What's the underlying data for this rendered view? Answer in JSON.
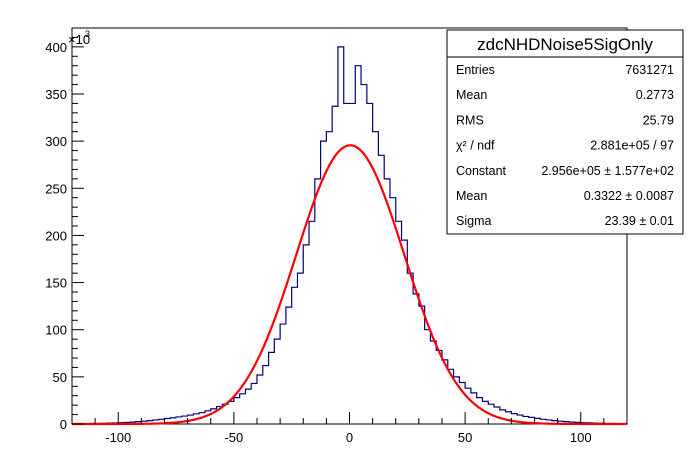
{
  "page_title": "zdcNHDNoise5SigOnly",
  "chart_data": {
    "type": "histogram",
    "title": "zdcNHDNoise5SigOnly",
    "xlabel": "",
    "ylabel": "",
    "y_multiplier_label": "×10",
    "y_multiplier_exponent": "3",
    "xlim": [
      -120,
      120
    ],
    "ylim": [
      0,
      420
    ],
    "x_ticks": [
      "-100",
      "-50",
      "0",
      "50",
      "100"
    ],
    "x_tick_values": [
      -100,
      -50,
      0,
      50,
      100
    ],
    "y_ticks": [
      "0",
      "50",
      "100",
      "150",
      "200",
      "250",
      "300",
      "350",
      "400"
    ],
    "y_tick_values": [
      0,
      50,
      100,
      150,
      200,
      250,
      300,
      350,
      400
    ],
    "grid": false,
    "bin_width": 2.5,
    "histogram": {
      "name": "zdcNHDNoise5SigOnly",
      "color": "#00007f",
      "bin_edges_start": -120,
      "values": [
        0.2,
        0.3,
        0.4,
        0.5,
        0.6,
        0.7,
        0.9,
        1.1,
        1.3,
        1.6,
        2,
        2.5,
        3,
        3.6,
        4.3,
        5,
        5.8,
        6.6,
        7.5,
        8.4,
        9.5,
        10.8,
        12,
        14,
        16,
        18.5,
        21,
        24,
        28,
        32,
        37,
        43,
        52,
        62,
        76,
        90,
        106,
        124,
        145,
        160,
        190,
        215,
        260,
        300,
        310,
        337,
        400,
        340,
        340,
        380,
        360,
        340,
        310,
        285,
        260,
        240,
        215,
        195,
        160,
        138,
        125,
        100,
        88,
        78,
        68,
        58,
        50,
        44,
        38,
        33,
        28,
        24,
        21,
        18,
        15,
        13,
        11,
        9.5,
        8,
        7,
        6,
        5,
        4.3,
        3.6,
        3,
        2.5,
        2,
        1.7,
        1.4,
        1.2,
        1,
        0.8,
        0.6,
        0.5,
        0.4,
        0.3
      ]
    },
    "fit": {
      "name": "gaus",
      "color": "#ff0000",
      "constant": 295.6,
      "mean": 0.3322,
      "sigma": 23.39
    },
    "stats_box": {
      "title": "zdcNHDNoise5SigOnly",
      "rows": [
        {
          "label": "Entries",
          "value": "7631271"
        },
        {
          "label": "Mean",
          "value": "0.2773"
        },
        {
          "label": "RMS",
          "value": "25.79"
        },
        {
          "label": "χ² / ndf",
          "value": "2.881e+05 / 97"
        },
        {
          "label": "Constant",
          "value": "2.956e+05 ± 1.577e+02"
        },
        {
          "label": "Mean",
          "value": "0.3322 ± 0.0087"
        },
        {
          "label": "Sigma",
          "value": "23.39 ± 0.01"
        }
      ]
    }
  }
}
